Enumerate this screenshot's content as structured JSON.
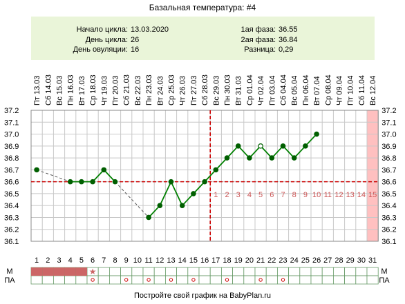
{
  "title": "Базальная температура: #4",
  "info": {
    "start_label": "Начало цикла:",
    "start_value": "13.03.2020",
    "day_label": "День цикла:",
    "day_value": "26",
    "ovul_label": "День овуляции:",
    "ovul_value": "16",
    "phase1_label": "1ая фаза:",
    "phase1_value": "36.55",
    "phase2_label": "2ая фаза:",
    "phase2_value": "36.84",
    "diff_label": "Разница:",
    "diff_value": "0,29"
  },
  "footer": "Постройте свой график на BabyPlan.ru",
  "row_labels": {
    "m": "М",
    "pa": "ПА"
  },
  "colors": {
    "line": "#008000",
    "marker": "#005f00",
    "grid": "#c8c8c8",
    "ovulation": "#cc0000",
    "period": "#cc6666",
    "highlight": "#ffc0c0",
    "info_bg": "#eaf5d9",
    "phase_number": "#cc5555"
  },
  "chart_data": {
    "type": "line",
    "ylim": [
      36.1,
      37.2
    ],
    "y_ticks": [
      "36.1",
      "36.2",
      "36.3",
      "36.4",
      "36.5",
      "36.6",
      "36.7",
      "36.8",
      "36.9",
      "37.0",
      "37.1",
      "37.2"
    ],
    "dates": [
      "Пт 13.03",
      "Сб 14.03",
      "Вс 15.03",
      "Пн 16.03",
      "Вт 17.03",
      "Ср 18.03",
      "Чт 19.03",
      "Пт 20.03",
      "Сб 21.03",
      "Вс 22.03",
      "Пн 23.03",
      "Вт 24.03",
      "Ср 25.03",
      "Чт 26.03",
      "Пт 27.03",
      "Сб 28.03",
      "Вс 29.03",
      "Пн 30.03",
      "Вт 31.03",
      "Ср 01.04",
      "Чт 02.04",
      "Пт 03.04",
      "Сб 04.04",
      "Вс 05.04",
      "Пн 06.04",
      "Вт 07.04",
      "Ср 08.04",
      "Чт 09.04",
      "Пт 10.04",
      "Сб 11.04",
      "Вс 12.04"
    ],
    "days": [
      1,
      2,
      3,
      4,
      5,
      6,
      7,
      8,
      9,
      10,
      11,
      12,
      13,
      14,
      15,
      16,
      17,
      18,
      19,
      20,
      21,
      22,
      23,
      24,
      25,
      26,
      27,
      28,
      29,
      30,
      31
    ],
    "temps": [
      36.7,
      null,
      null,
      36.6,
      36.6,
      36.6,
      36.7,
      36.6,
      null,
      null,
      36.3,
      36.4,
      36.6,
      36.4,
      36.5,
      36.6,
      36.7,
      36.8,
      36.9,
      36.8,
      36.9,
      36.8,
      36.9,
      36.8,
      36.9,
      37.0
    ],
    "open_markers": [
      21
    ],
    "coverline": 36.6,
    "ovulation_day": 16,
    "luteal_numbers": [
      "1",
      "2",
      "3",
      "4",
      "5",
      "6",
      "7",
      "8",
      "9",
      "10",
      "11",
      "12",
      "13",
      "14",
      "15"
    ],
    "highlight_day": 31,
    "period_days": [
      1,
      2,
      3,
      4,
      5
    ],
    "star_days": [
      6
    ],
    "pa_days": [
      6,
      9,
      11,
      13,
      15,
      18,
      21,
      23
    ]
  }
}
